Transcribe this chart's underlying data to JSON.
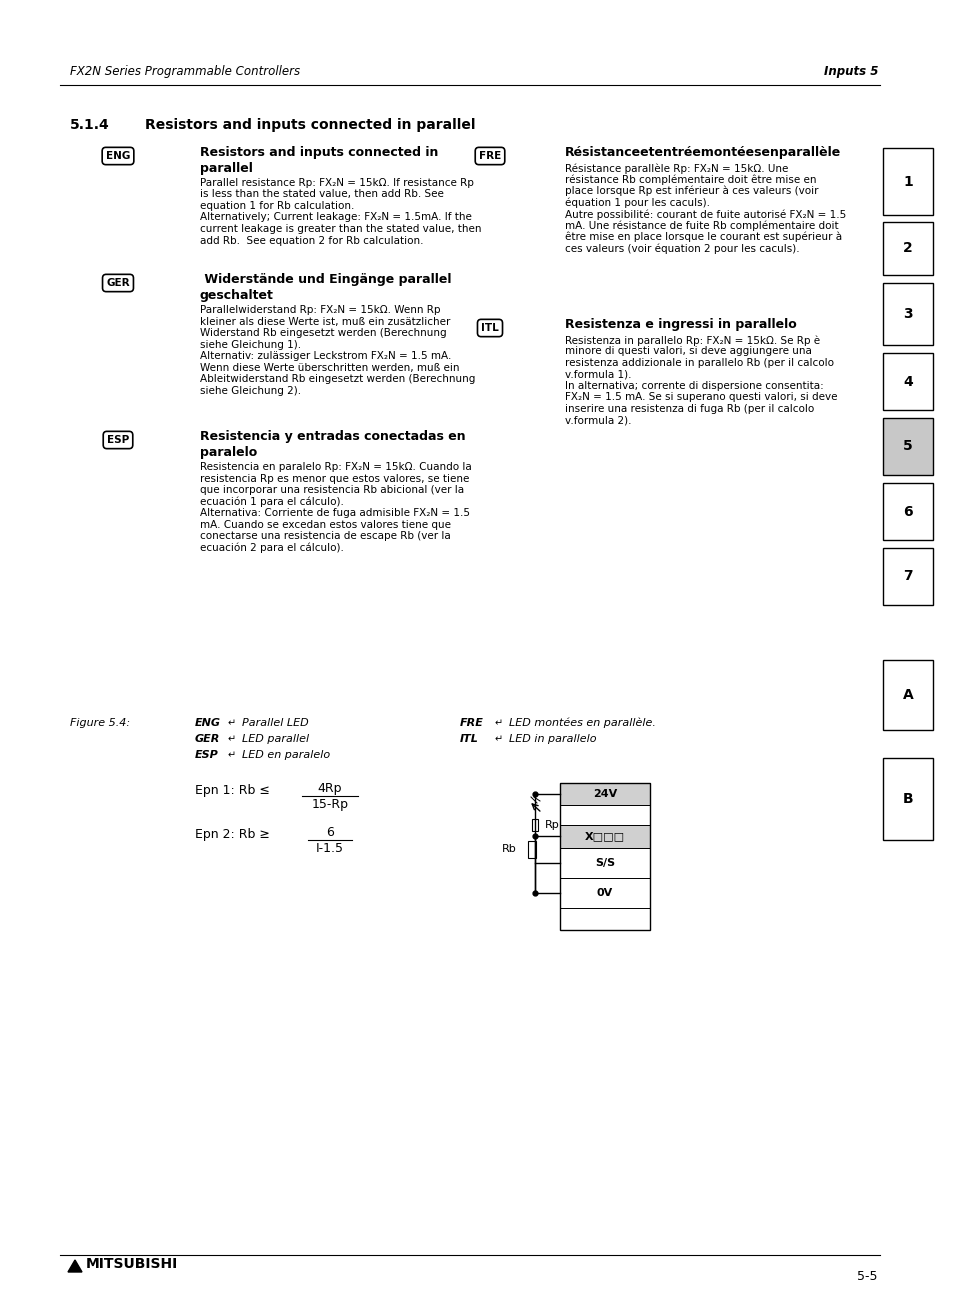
{
  "page_header_left": "FX2N Series Programmable Controllers",
  "page_header_right": "Inputs 5",
  "section_num": "5.1.4",
  "section_title": "Resistors and inputs connected in parallel",
  "bg_color": "#ffffff",
  "sidebar_numbers": [
    "1",
    "2",
    "3",
    "4",
    "5",
    "6",
    "7",
    "A",
    "B"
  ],
  "eng_title_line1": "Resistors and inputs connected in",
  "eng_title_line2": "parallel",
  "eng_body": "Parallel resistance Rp: FX₂N = 15kΩ. If resistance Rp\nis less than the stated value, then add Rb. See\nequation 1 for Rb calculation.\nAlternatively; Current leakage: FX₂N = 1.5mA. If the\ncurrent leakage is greater than the stated value, then\nadd Rb.  See equation 2 for Rb calculation.",
  "ger_title_line1": " Widerstände und Eingänge parallel",
  "ger_title_line2": "geschaltet",
  "ger_body": "Parallelwiderstand Rp: FX₂N = 15kΩ. Wenn Rp\nkleiner als diese Werte ist, muß ein zusätzlicher\nWiderstand Rb eingesetzt werden (Berechnung\nsiehe Gleichung 1).\nAlternativ: zulässiger Leckstrom FX₂N = 1.5 mA.\nWenn diese Werte überschritten werden, muß ein\nAbleitwiderstand Rb eingesetzt werden (Berechnung\nsiehe Gleichung 2).",
  "esp_title_line1": "Resistencia y entradas conectadas en",
  "esp_title_line2": "paralelo",
  "esp_body": "Resistencia en paralelo Rp: FX₂N = 15kΩ. Cuando la\nresistencia Rp es menor que estos valores, se tiene\nque incorporar una resistencia Rb abicional (ver la\necuación 1 para el cálculo).\nAlternativa: Corriente de fuga admisible FX₂N = 1.5\nmA. Cuando se excedan estos valores tiene que\nconectarse una resistencia de escape Rb (ver la\necuación 2 para el cálculo).",
  "fre_title": "Résistanceetentréemontéesenparallèle",
  "fre_body": "Résistance parallèle Rp: FX₂N = 15kΩ. Une\nrésistance Rb complémentaire doit être mise en\nplace lorsque Rp est inférieur à ces valeurs (voir\néquation 1 pour les caculs).\nAutre possibilité: courant de fuite autorisé FX₂N = 1.5\nmA. Une résistance de fuite Rb complémentaire doit\nêtre mise en place lorsque le courant est supérieur à\nces valeurs (voir équation 2 pour les caculs).",
  "itl_title": "Resistenza e ingressi in parallelo",
  "itl_body": "Resistenza in parallelo Rp: FX₂N = 15kΩ. Se Rp è\nminore di questi valori, si deve aggiungere una\nresistenza addizionale in parallelo Rb (per il calcolo\nv.formula 1).\nIn alternativa; corrente di dispersione consentita:\nFX₂N = 1.5 mA. Se si superano questi valori, si deve\ninserire una resistenza di fuga Rb (per il calcolo\nv.formula 2).",
  "fig_caption": "Figure 5.4:",
  "footer_right": "5-5",
  "eq1_label": "Epn 1: Rb ≤",
  "eq1_num": "4Rp",
  "eq1_den": "15-Rp",
  "eq2_label": "Epn 2: Rb ≥",
  "eq2_num": "6",
  "eq2_den": "I-1.5"
}
